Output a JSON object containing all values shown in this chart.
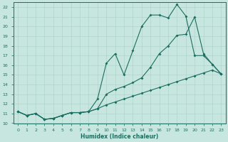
{
  "xlabel": "Humidex (Indice chaleur)",
  "bg_color": "#c8e6e0",
  "grid_color": "#afd4cc",
  "line_color": "#1a6e60",
  "xlim": [
    -0.5,
    23.5
  ],
  "ylim": [
    10,
    22.5
  ],
  "xticks": [
    0,
    1,
    2,
    3,
    4,
    5,
    6,
    7,
    8,
    9,
    10,
    11,
    12,
    13,
    14,
    15,
    16,
    17,
    18,
    19,
    20,
    21,
    22,
    23
  ],
  "yticks": [
    10,
    11,
    12,
    13,
    14,
    15,
    16,
    17,
    18,
    19,
    20,
    21,
    22
  ],
  "line1_x": [
    0,
    1,
    2,
    3,
    4,
    5,
    6,
    7,
    8,
    9,
    10,
    11,
    12,
    13,
    14,
    15,
    16,
    17,
    18,
    19,
    20,
    21,
    22,
    23
  ],
  "line1_y": [
    11.2,
    10.8,
    11.0,
    10.4,
    10.5,
    10.8,
    11.1,
    11.1,
    11.2,
    12.5,
    16.2,
    17.2,
    15.0,
    17.5,
    20.0,
    21.2,
    21.2,
    20.9,
    22.3,
    21.1,
    17.0,
    17.0,
    16.1,
    15.1
  ],
  "line2_x": [
    0,
    1,
    2,
    3,
    4,
    5,
    6,
    7,
    8,
    9,
    10,
    11,
    12,
    13,
    14,
    15,
    16,
    17,
    18,
    19,
    20,
    21,
    22,
    23
  ],
  "line2_y": [
    11.2,
    10.8,
    11.0,
    10.4,
    10.5,
    10.8,
    11.1,
    11.1,
    11.2,
    11.5,
    13.0,
    13.5,
    13.8,
    14.2,
    14.7,
    15.8,
    17.2,
    18.0,
    19.1,
    19.2,
    21.0,
    17.2,
    16.1,
    15.1
  ],
  "line3_x": [
    0,
    1,
    2,
    3,
    4,
    5,
    6,
    7,
    8,
    9,
    10,
    11,
    12,
    13,
    14,
    15,
    16,
    17,
    18,
    19,
    20,
    21,
    22,
    23
  ],
  "line3_y": [
    11.2,
    10.8,
    11.0,
    10.4,
    10.5,
    10.8,
    11.1,
    11.1,
    11.2,
    11.5,
    11.9,
    12.2,
    12.5,
    12.8,
    13.1,
    13.4,
    13.7,
    14.0,
    14.3,
    14.6,
    14.9,
    15.2,
    15.5,
    15.1
  ]
}
